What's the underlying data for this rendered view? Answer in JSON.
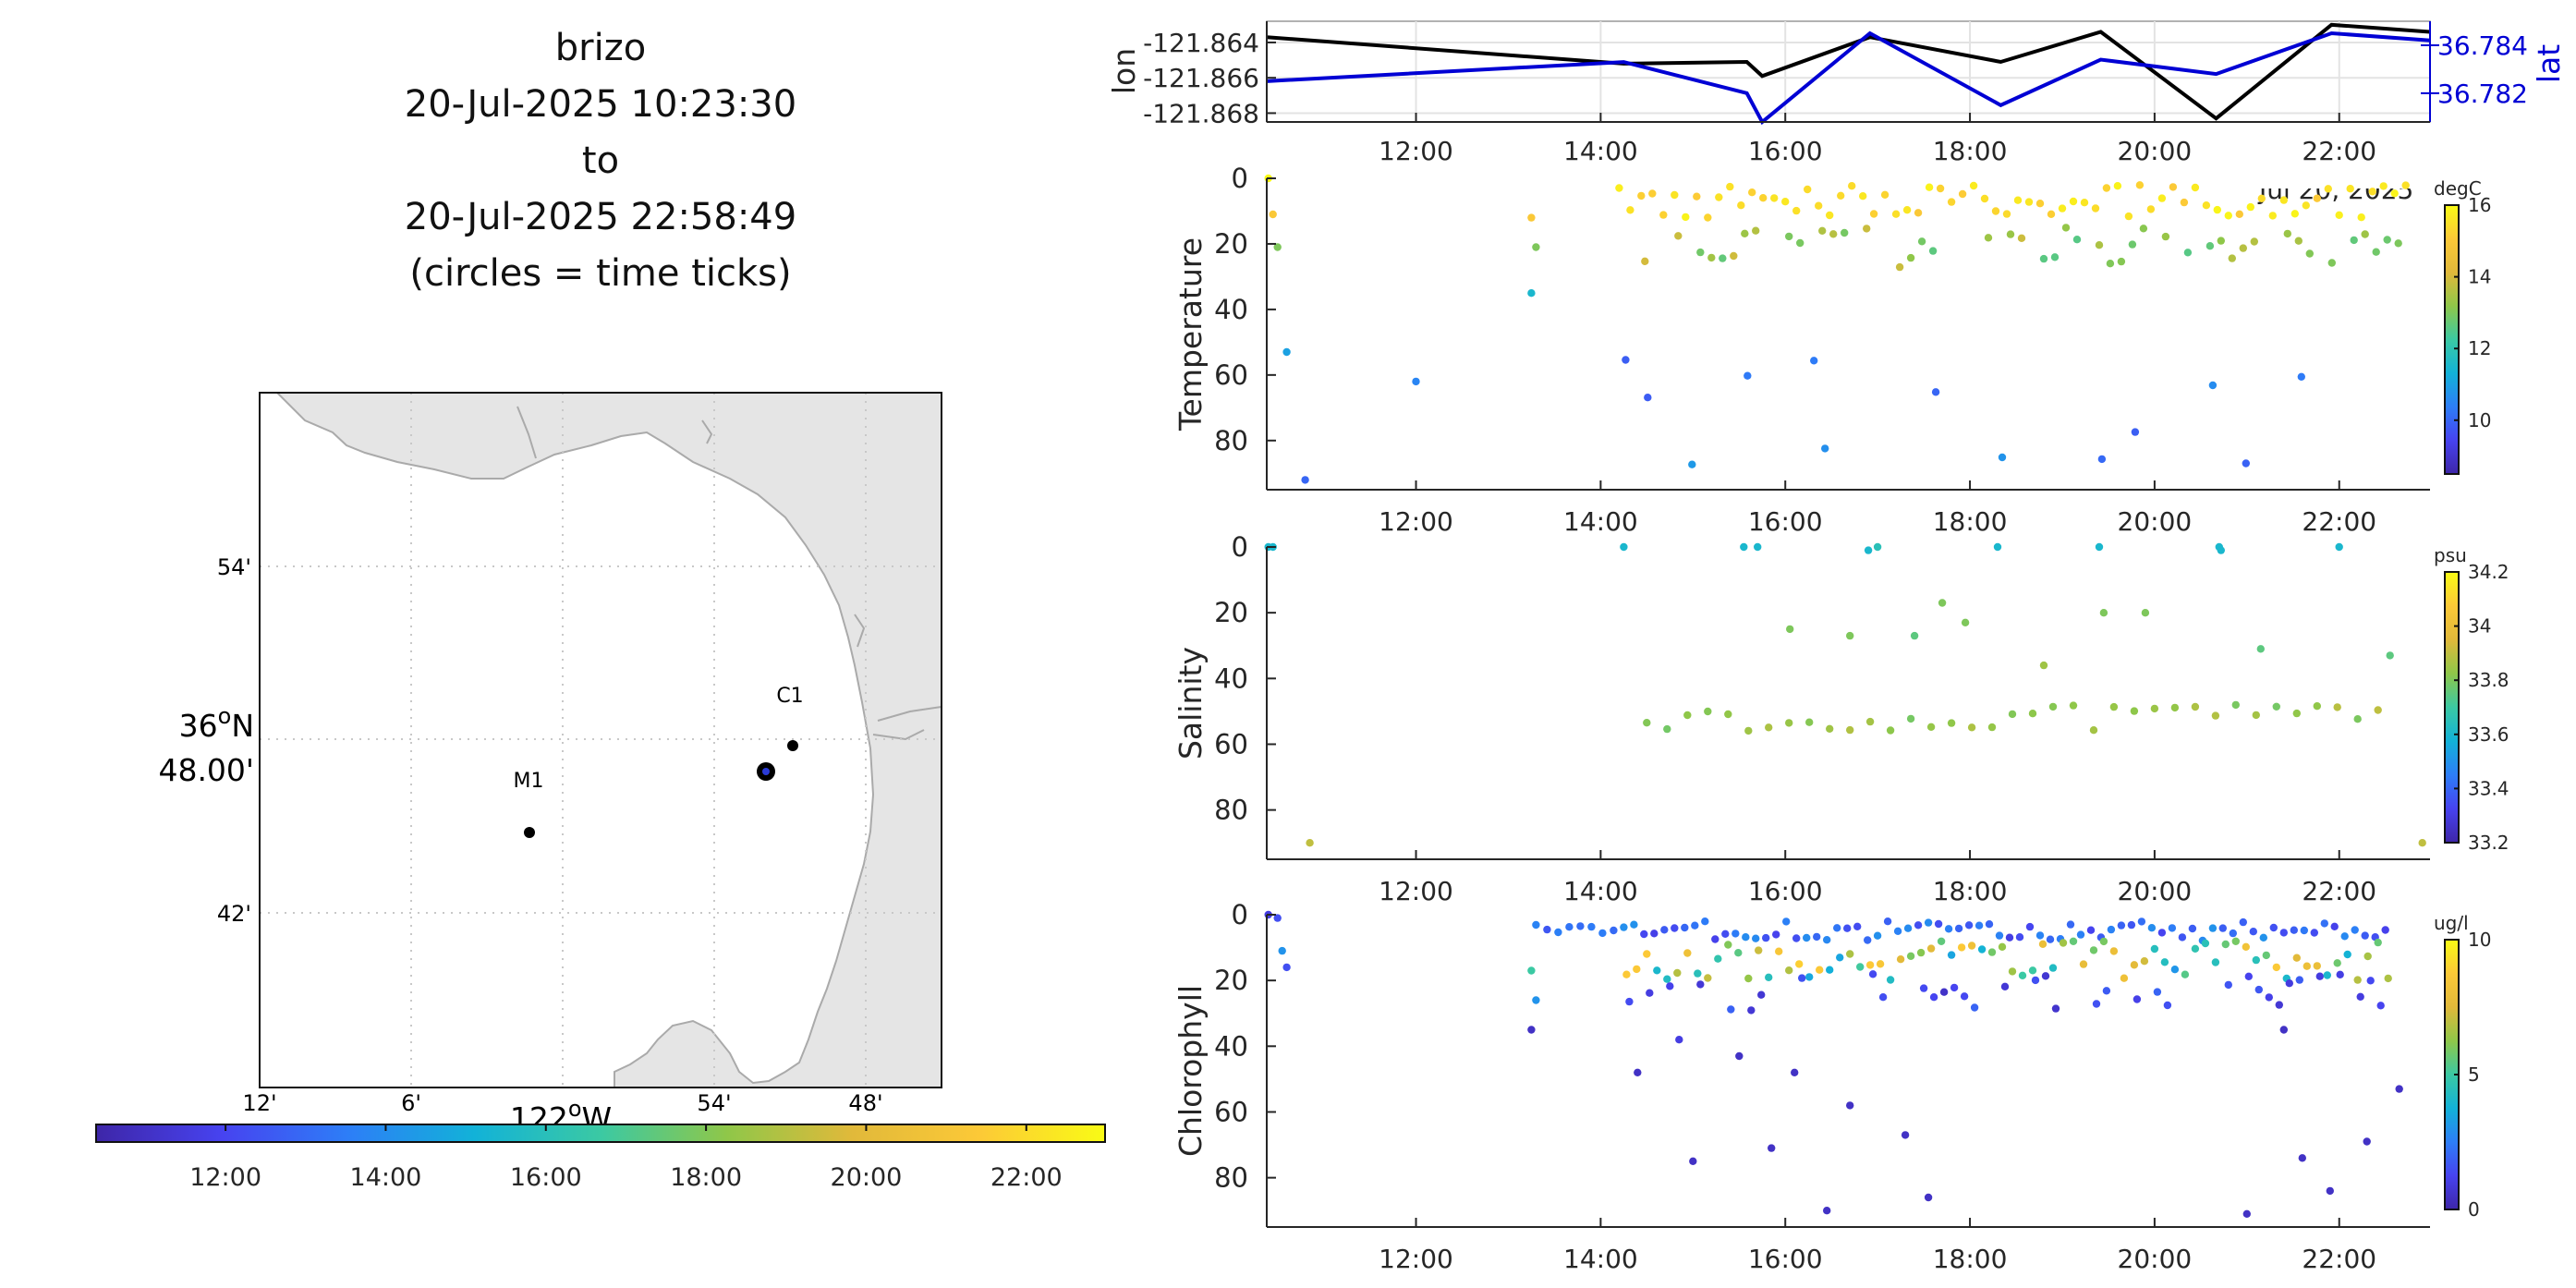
{
  "title": {
    "lines": [
      "brizo",
      "20-Jul-2025 10:23:30",
      "to",
      "20-Jul-2025 22:58:49",
      "(circles = time ticks)"
    ]
  },
  "map": {
    "lat_ticks": [
      "54'",
      "42'"
    ],
    "lat_main_label_line1": "36",
    "lat_main_label_sup": "o",
    "lat_main_label_suffix": "N",
    "lat_main_label_line2": "48.00'",
    "lon_ticks": [
      "12'",
      "6'",
      "54'",
      "48'"
    ],
    "lon_main_label": "122",
    "lon_main_label_sup": "o",
    "lon_main_label_suffix": "W",
    "station_labels": [
      "C1",
      "M1"
    ],
    "time_colorbar_ticks": [
      "12:00",
      "14:00",
      "16:00",
      "18:00",
      "20:00",
      "22:00"
    ]
  },
  "colors": {
    "track_lon": "#000000",
    "track_lat": "#0000d4",
    "land": "#e5e5e5",
    "coast": "#aaaaaa",
    "colormap": [
      "#3e26a8",
      "#4743f0",
      "#2d7ef7",
      "#12b2d8",
      "#3bc9a3",
      "#8fc749",
      "#e1b93a",
      "#fcc937",
      "#f9fb15"
    ]
  },
  "chart_data": [
    {
      "type": "line",
      "panel": "position",
      "ylabel": "lon",
      "ylabel_right": "lat",
      "x_ticks": [
        "12:00",
        "14:00",
        "16:00",
        "18:00",
        "20:00",
        "22:00"
      ],
      "x_partial_label": "Jul 20, 2025",
      "y_ticks_left": [
        "-121.864",
        "-121.866",
        "-121.868"
      ],
      "y_ticks_right": [
        "36.784",
        "36.782"
      ],
      "x_range": [
        "10:23",
        "22:59"
      ],
      "ylim_left": [
        -121.8685,
        -121.8628
      ],
      "ylim_right": [
        36.7808,
        36.785
      ],
      "series": [
        {
          "name": "lon",
          "x": [
            "10:23",
            "14:15",
            "15:35",
            "15:45",
            "16:55",
            "18:20",
            "19:25",
            "20:40",
            "21:55",
            "22:59"
          ],
          "values": [
            -121.8637,
            -121.8652,
            -121.8651,
            -121.8659,
            -121.8637,
            -121.8651,
            -121.8634,
            -121.8683,
            -121.863,
            -121.8634
          ]
        },
        {
          "name": "lat",
          "x": [
            "10:23",
            "14:15",
            "15:35",
            "15:45",
            "16:55",
            "18:20",
            "19:25",
            "20:40",
            "21:55",
            "22:59"
          ],
          "values": [
            36.7825,
            36.7833,
            36.782,
            36.7808,
            36.7845,
            36.7815,
            36.7834,
            36.7828,
            36.7845,
            36.7842
          ]
        }
      ]
    },
    {
      "type": "scatter",
      "panel": "temperature",
      "ylabel": "Temperature",
      "unit": "degC",
      "ylim": [
        95,
        0
      ],
      "y_ticks": [
        "0",
        "20",
        "40",
        "60",
        "80"
      ],
      "x_ticks": [
        "12:00",
        "14:00",
        "16:00",
        "18:00",
        "20:00",
        "22:00"
      ],
      "clim": [
        8.5,
        16
      ],
      "cbar_ticks": [
        "16",
        "14",
        "12",
        "10"
      ]
    },
    {
      "type": "scatter",
      "panel": "salinity",
      "ylabel": "Salinity",
      "unit": "psu",
      "ylim": [
        95,
        0
      ],
      "y_ticks": [
        "0",
        "20",
        "40",
        "60",
        "80"
      ],
      "x_ticks": [
        "12:00",
        "14:00",
        "16:00",
        "18:00",
        "20:00",
        "22:00"
      ],
      "clim": [
        33.2,
        34.2
      ],
      "cbar_ticks": [
        "34.2",
        "34",
        "33.8",
        "33.6",
        "33.4",
        "33.2"
      ]
    },
    {
      "type": "scatter",
      "panel": "chlorophyll",
      "ylabel": "Chlorophyll",
      "unit": "ug/l",
      "ylim": [
        95,
        0
      ],
      "y_ticks": [
        "0",
        "20",
        "40",
        "60",
        "80"
      ],
      "x_ticks": [
        "12:00",
        "14:00",
        "16:00",
        "18:00",
        "20:00",
        "22:00"
      ],
      "clim": [
        0,
        10
      ],
      "cbar_ticks": [
        "10",
        "5",
        "0"
      ]
    }
  ]
}
